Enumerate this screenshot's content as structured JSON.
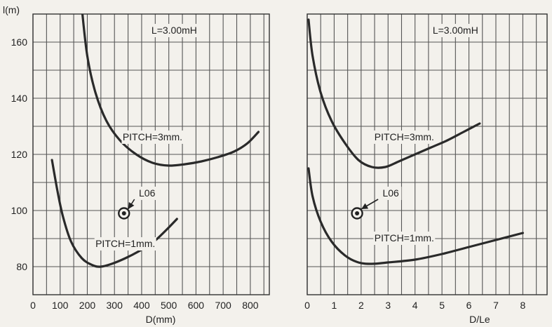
{
  "chart_data": [
    {
      "type": "line",
      "title": "",
      "xlabel": "D(mm)",
      "ylabel": "l(m)",
      "xlim": [
        0,
        870
      ],
      "ylim": [
        70,
        170
      ],
      "x_ticks": [
        0,
        100,
        200,
        300,
        400,
        500,
        600,
        700,
        800
      ],
      "y_ticks": [
        80,
        100,
        120,
        140,
        160
      ],
      "grid_x_step": 50,
      "grid_y_step": 10,
      "grid": true,
      "series": [
        {
          "name": "PITCH=3mm.",
          "x": [
            180,
            200,
            230,
            270,
            320,
            380,
            440,
            500,
            560,
            620,
            680,
            740,
            790,
            830
          ],
          "y": [
            172,
            155,
            142,
            132,
            125,
            120,
            117,
            116,
            116.5,
            117.5,
            119,
            121,
            124,
            128
          ]
        },
        {
          "name": "PITCH=1mm.",
          "x": [
            70,
            90,
            110,
            140,
            180,
            220,
            250,
            290,
            340,
            390,
            440,
            490,
            530
          ],
          "y": [
            118,
            107,
            98,
            89,
            83,
            80.5,
            80,
            81,
            83,
            85.5,
            88.5,
            93,
            97
          ]
        }
      ],
      "annotations": [
        {
          "text": "L=3.00mH",
          "x": 520,
          "y": 163
        },
        {
          "text": "PITCH=3mm.",
          "x": 440,
          "y": 125
        },
        {
          "text": "PITCH=1mm.",
          "x": 340,
          "y": 87
        },
        {
          "text": "L06",
          "x": 420,
          "y": 105
        }
      ],
      "marker": {
        "label": "L06",
        "x": 335,
        "y": 99
      }
    },
    {
      "type": "line",
      "title": "",
      "xlabel": "D/Le",
      "ylabel": "",
      "xlim": [
        0,
        8.9
      ],
      "ylim": [
        70,
        170
      ],
      "x_ticks": [
        0,
        1,
        2,
        3,
        4,
        5,
        6,
        7,
        8
      ],
      "y_ticks": [],
      "grid_x_step": 0.5,
      "grid_y_step": 10,
      "grid": true,
      "series": [
        {
          "name": "PITCH=3mm.",
          "x": [
            0.05,
            0.2,
            0.5,
            0.9,
            1.4,
            1.9,
            2.4,
            2.9,
            3.4,
            4.0,
            4.6,
            5.2,
            5.8,
            6.4
          ],
          "y": [
            168,
            155,
            142,
            132,
            124,
            118,
            115.5,
            115.5,
            117.5,
            120,
            122.5,
            125,
            128,
            131
          ]
        },
        {
          "name": "PITCH=1mm.",
          "x": [
            0.05,
            0.2,
            0.5,
            0.9,
            1.4,
            1.9,
            2.4,
            3.0,
            4.0,
            5.0,
            6.0,
            7.0,
            8.0
          ],
          "y": [
            115,
            105,
            96,
            89,
            84,
            81.5,
            81,
            81.5,
            82.5,
            84.5,
            87,
            89.5,
            92
          ]
        }
      ],
      "annotations": [
        {
          "text": "L=3.00mH",
          "x": 5.5,
          "y": 163
        },
        {
          "text": "PITCH=3mm.",
          "x": 3.6,
          "y": 125
        },
        {
          "text": "PITCH=1mm.",
          "x": 3.6,
          "y": 89
        },
        {
          "text": "L06",
          "x": 3.1,
          "y": 105
        }
      ],
      "marker": {
        "label": "L06",
        "x": 1.85,
        "y": 99
      }
    }
  ]
}
